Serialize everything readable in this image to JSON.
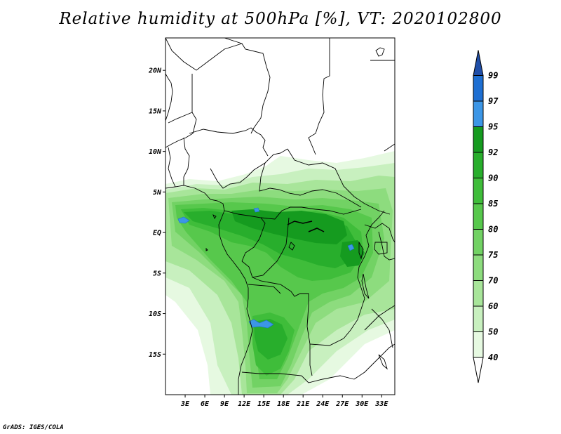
{
  "title": "Relative humidity at 500hPa [%], VT: 2020102800",
  "credit": "GrADS: IGES/COLA",
  "map": {
    "lon_range": [
      0,
      35
    ],
    "lat_range": [
      -20,
      24
    ],
    "lat_ticks": [
      {
        "value": 20,
        "label": "20N"
      },
      {
        "value": 15,
        "label": "15N"
      },
      {
        "value": 10,
        "label": "10N"
      },
      {
        "value": 5,
        "label": "5N"
      },
      {
        "value": 0,
        "label": "EQ"
      },
      {
        "value": -5,
        "label": "5S"
      },
      {
        "value": -10,
        "label": "10S"
      },
      {
        "value": -15,
        "label": "15S"
      }
    ],
    "lon_ticks": [
      {
        "value": 3,
        "label": "3E"
      },
      {
        "value": 6,
        "label": "6E"
      },
      {
        "value": 9,
        "label": "9E"
      },
      {
        "value": 12,
        "label": "12E"
      },
      {
        "value": 15,
        "label": "15E"
      },
      {
        "value": 18,
        "label": "18E"
      },
      {
        "value": 21,
        "label": "21E"
      },
      {
        "value": 24,
        "label": "24E"
      },
      {
        "value": 27,
        "label": "27E"
      },
      {
        "value": 30,
        "label": "30E"
      },
      {
        "value": 33,
        "label": "33E"
      }
    ]
  },
  "colorbar": {
    "levels": [
      "40",
      "50",
      "60",
      "70",
      "75",
      "80",
      "85",
      "90",
      "92",
      "95",
      "97",
      "99"
    ],
    "colors": [
      "#e6f9e1",
      "#c8f0bf",
      "#a8e59a",
      "#8ddc7e",
      "#72d264",
      "#57c84c",
      "#3fbd3a",
      "#28ae2c",
      "#159b1f",
      "#3c96e6",
      "#1e6fd2",
      "#2050b4"
    ],
    "below_color": "#ffffff",
    "above_color": "#1f4ea8"
  }
}
